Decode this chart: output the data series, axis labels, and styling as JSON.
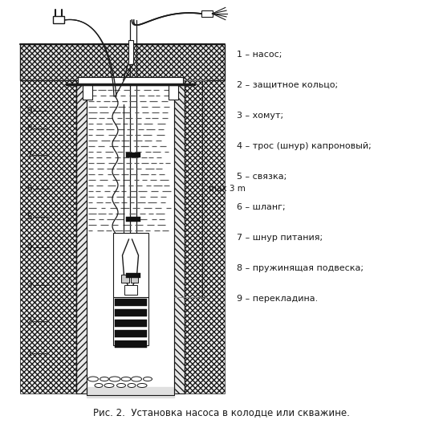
{
  "bg_color": "#ffffff",
  "line_color": "#1a1a1a",
  "caption": "Рис. 2.  Установка насоса в колодце или скважине.",
  "max_label": "max 3 m",
  "legend_items": [
    "1 – насос;",
    "2 – защитное кольцо;",
    "3 – хомут;",
    "4 – трос (шнур) капроновый;",
    "5 – связка;",
    "6 – шланг;",
    "7 – шнур питания;",
    "8 – пружинящая подвеска;",
    "9 – перекладина."
  ]
}
